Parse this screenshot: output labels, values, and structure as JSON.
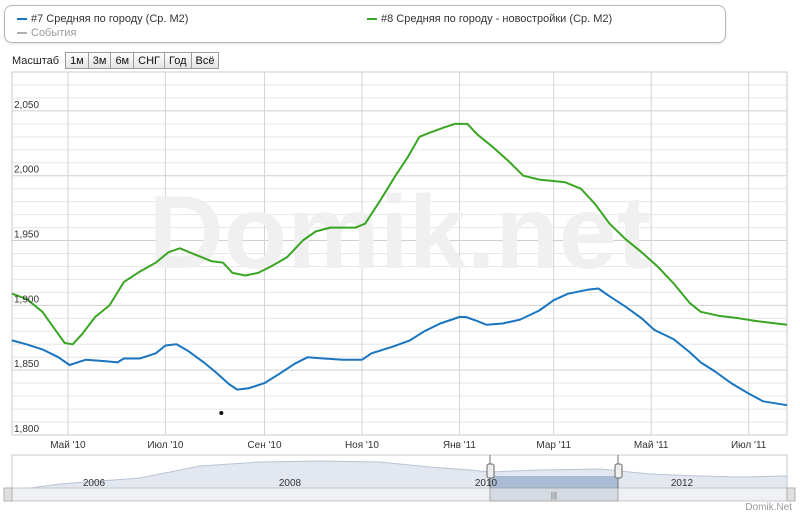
{
  "legend": {
    "items": [
      {
        "label": "#7 Средняя по городу (Ср. М2)",
        "color": "#1a75c1"
      },
      {
        "label": "#8 Средняя по городу - новостройки (Ср. М2)",
        "color": "#3aa523"
      },
      {
        "label": "События",
        "color": "#b0b0b0"
      }
    ]
  },
  "scale": {
    "label": "Масштаб",
    "buttons": [
      "1м",
      "3м",
      "6м",
      "СНГ",
      "Год",
      "Всё"
    ]
  },
  "watermark": "Domik.net",
  "footer": "Domik.Net",
  "chart_data": {
    "type": "line",
    "x_ticks": [
      "Май '10",
      "Июл '10",
      "Сен '10",
      "Ноя '10",
      "Янв '11",
      "Мар '11",
      "Май '11",
      "Июл '11"
    ],
    "x_range": [
      "2010-03-27",
      "2011-07-25"
    ],
    "y_ticks": [
      "1,800",
      "1,850",
      "1,900",
      "1,950",
      "2,000",
      "2,050"
    ],
    "ylim": [
      1800,
      2080
    ],
    "grid": true,
    "series": [
      {
        "name": "#7 Средняя по городу (Ср. М2)",
        "color": "#1a75c1",
        "points": [
          [
            "2010-03-27",
            1873
          ],
          [
            "2010-04-05",
            1870
          ],
          [
            "2010-04-15",
            1866
          ],
          [
            "2010-04-25",
            1860
          ],
          [
            "2010-05-02",
            1854
          ],
          [
            "2010-05-12",
            1858
          ],
          [
            "2010-05-24",
            1857
          ],
          [
            "2010-06-01",
            1856
          ],
          [
            "2010-06-05",
            1859
          ],
          [
            "2010-06-15",
            1859
          ],
          [
            "2010-06-25",
            1863
          ],
          [
            "2010-07-01",
            1869
          ],
          [
            "2010-07-08",
            1870
          ],
          [
            "2010-07-15",
            1865
          ],
          [
            "2010-07-25",
            1856
          ],
          [
            "2010-08-01",
            1849
          ],
          [
            "2010-08-10",
            1839
          ],
          [
            "2010-08-15",
            1835
          ],
          [
            "2010-08-22",
            1836
          ],
          [
            "2010-09-01",
            1840
          ],
          [
            "2010-09-10",
            1847
          ],
          [
            "2010-09-20",
            1855
          ],
          [
            "2010-09-28",
            1860
          ],
          [
            "2010-10-08",
            1859
          ],
          [
            "2010-10-20",
            1858
          ],
          [
            "2010-11-01",
            1858
          ],
          [
            "2010-11-07",
            1863
          ],
          [
            "2010-11-20",
            1868
          ],
          [
            "2010-12-01",
            1873
          ],
          [
            "2010-12-10",
            1880
          ],
          [
            "2010-12-20",
            1886
          ],
          [
            "2011-01-01",
            1891
          ],
          [
            "2011-01-05",
            1891
          ],
          [
            "2011-01-12",
            1888
          ],
          [
            "2011-01-18",
            1885
          ],
          [
            "2011-01-28",
            1886
          ],
          [
            "2011-02-08",
            1889
          ],
          [
            "2011-02-20",
            1896
          ],
          [
            "2011-03-01",
            1904
          ],
          [
            "2011-03-10",
            1909
          ],
          [
            "2011-03-22",
            1912
          ],
          [
            "2011-03-29",
            1913
          ],
          [
            "2011-04-05",
            1907
          ],
          [
            "2011-04-15",
            1899
          ],
          [
            "2011-04-25",
            1890
          ],
          [
            "2011-05-03",
            1881
          ],
          [
            "2011-05-15",
            1874
          ],
          [
            "2011-05-25",
            1864
          ],
          [
            "2011-06-01",
            1856
          ],
          [
            "2011-06-10",
            1849
          ],
          [
            "2011-06-20",
            1840
          ],
          [
            "2011-07-01",
            1832
          ],
          [
            "2011-07-10",
            1826
          ],
          [
            "2011-07-25",
            1823
          ]
        ]
      },
      {
        "name": "#8 Средняя по городу - новостройки (Ср. М2)",
        "color": "#3aa523",
        "points": [
          [
            "2010-03-27",
            1909
          ],
          [
            "2010-04-05",
            1905
          ],
          [
            "2010-04-15",
            1895
          ],
          [
            "2010-04-22",
            1883
          ],
          [
            "2010-04-29",
            1871
          ],
          [
            "2010-05-04",
            1870
          ],
          [
            "2010-05-10",
            1878
          ],
          [
            "2010-05-18",
            1891
          ],
          [
            "2010-05-27",
            1900
          ],
          [
            "2010-06-05",
            1918
          ],
          [
            "2010-06-15",
            1926
          ],
          [
            "2010-06-25",
            1933
          ],
          [
            "2010-07-03",
            1941
          ],
          [
            "2010-07-10",
            1944
          ],
          [
            "2010-07-20",
            1939
          ],
          [
            "2010-07-30",
            1934
          ],
          [
            "2010-08-06",
            1933
          ],
          [
            "2010-08-12",
            1925
          ],
          [
            "2010-08-20",
            1923
          ],
          [
            "2010-08-28",
            1925
          ],
          [
            "2010-09-05",
            1930
          ],
          [
            "2010-09-15",
            1937
          ],
          [
            "2010-09-25",
            1950
          ],
          [
            "2010-10-03",
            1957
          ],
          [
            "2010-10-12",
            1960
          ],
          [
            "2010-10-20",
            1960
          ],
          [
            "2010-10-28",
            1960
          ],
          [
            "2010-11-03",
            1963
          ],
          [
            "2010-11-12",
            1980
          ],
          [
            "2010-11-22",
            2000
          ],
          [
            "2010-11-30",
            2015
          ],
          [
            "2010-12-07",
            2030
          ],
          [
            "2010-12-13",
            2033
          ],
          [
            "2010-12-22",
            2037
          ],
          [
            "2010-12-29",
            2040
          ],
          [
            "2011-01-06",
            2040
          ],
          [
            "2011-01-12",
            2032
          ],
          [
            "2011-01-22",
            2022
          ],
          [
            "2011-02-01",
            2011
          ],
          [
            "2011-02-10",
            2000
          ],
          [
            "2011-02-20",
            1997
          ],
          [
            "2011-02-28",
            1996
          ],
          [
            "2011-03-08",
            1995
          ],
          [
            "2011-03-18",
            1990
          ],
          [
            "2011-03-27",
            1978
          ],
          [
            "2011-04-05",
            1963
          ],
          [
            "2011-04-15",
            1951
          ],
          [
            "2011-04-25",
            1941
          ],
          [
            "2011-05-05",
            1930
          ],
          [
            "2011-05-15",
            1917
          ],
          [
            "2011-05-25",
            1902
          ],
          [
            "2011-06-01",
            1895
          ],
          [
            "2011-06-12",
            1892
          ],
          [
            "2011-06-25",
            1890
          ],
          [
            "2011-07-05",
            1888
          ],
          [
            "2011-07-25",
            1885
          ]
        ]
      }
    ],
    "events": [
      [
        "2010-08-05",
        1817
      ]
    ],
    "navigator": {
      "year_labels": [
        "2006",
        "2008",
        "2010",
        "2012"
      ],
      "selection": "Mar 2010 – Jul 2011"
    }
  }
}
